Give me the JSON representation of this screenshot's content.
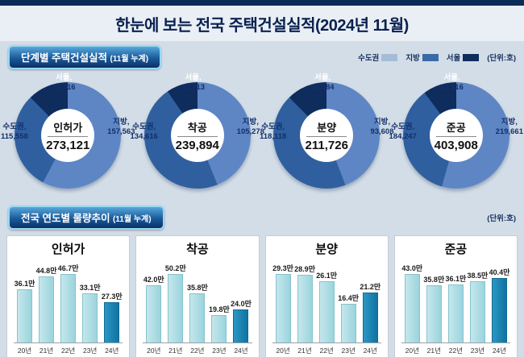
{
  "title": "한눈에 보는 전국 주택건설실적(2024년 11월)",
  "unit_label": "(단위:호)",
  "region_labels": {
    "seoul": "서울",
    "capital": "수도권",
    "provincial": "지방"
  },
  "colors": {
    "navy": "#0d2b57",
    "seoul": "#0e2c5c",
    "capital_donut": "#2f5f9e",
    "provincial_donut": "#5e86c4",
    "capital_legend": "#a6bcd6",
    "provincial_legend": "#3a69a9",
    "bar_light": "#9bd4dd",
    "bar_accent": "#1581b2"
  },
  "section1": {
    "badge_title": "단계별 주택건설실적",
    "badge_sub": "(11월 누계)"
  },
  "section2": {
    "badge_title": "전국 연도별 물량추이",
    "badge_sub": "(11월 누계)"
  },
  "chart_data": [
    {
      "type": "donut",
      "title": "인허가",
      "total": 273121,
      "seoul": 33716,
      "capital": 115558,
      "provincial": 157563
    },
    {
      "type": "donut",
      "title": "착공",
      "total": 239894,
      "seoul": 22813,
      "capital": 134616,
      "provincial": 105278
    },
    {
      "type": "donut",
      "title": "분양",
      "total": 211726,
      "seoul": 26084,
      "capital": 118118,
      "provincial": 93608
    },
    {
      "type": "donut",
      "title": "준공",
      "total": 403908,
      "seoul": 41116,
      "capital": 184247,
      "provincial": 219661
    },
    {
      "type": "bar",
      "title": "인허가",
      "categories": [
        "20년",
        "21년",
        "22년",
        "23년",
        "24년"
      ],
      "values": [
        36.1,
        44.8,
        46.7,
        33.1,
        27.3
      ],
      "value_suffix": "만",
      "highlight_index": 4
    },
    {
      "type": "bar",
      "title": "착공",
      "categories": [
        "20년",
        "21년",
        "22년",
        "23년",
        "24년"
      ],
      "values": [
        42.0,
        50.2,
        35.8,
        19.8,
        24.0
      ],
      "value_suffix": "만",
      "highlight_index": 4
    },
    {
      "type": "bar",
      "title": "분양",
      "categories": [
        "20년",
        "21년",
        "22년",
        "23년",
        "24년"
      ],
      "values": [
        29.3,
        28.9,
        26.1,
        16.4,
        21.2
      ],
      "value_suffix": "만",
      "highlight_index": 4
    },
    {
      "type": "bar",
      "title": "준공",
      "categories": [
        "20년",
        "21년",
        "22년",
        "23년",
        "24년"
      ],
      "values": [
        43.0,
        35.8,
        36.1,
        38.5,
        40.4
      ],
      "value_suffix": "만",
      "highlight_index": 4
    }
  ]
}
